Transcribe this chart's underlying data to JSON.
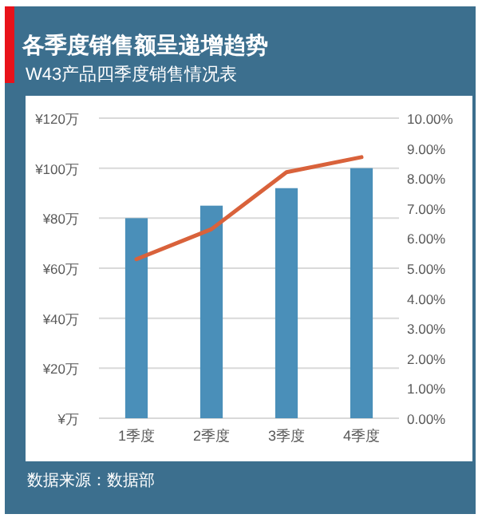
{
  "chart_data": {
    "type": "bar",
    "title": "各季度销售额呈递增趋势",
    "subtitle": "W43产品四季度销售情况表",
    "categories": [
      "1季度",
      "2季度",
      "3季度",
      "4季度"
    ],
    "series": [
      {
        "color": "#4a8fb9",
        "values": [
          80,
          85,
          92,
          100
        ]
      },
      {
        "type": "line",
        "axis": "y2",
        "color": "#d9623b",
        "values": [
          5.3,
          6.3,
          8.2,
          8.7
        ]
      }
    ],
    "ylim": [
      0,
      120
    ],
    "yticks": [
      {
        "value": 0,
        "label": "¥万"
      },
      {
        "value": 20,
        "label": "¥20万"
      },
      {
        "value": 40,
        "label": "¥40万"
      },
      {
        "value": 60,
        "label": "¥60万"
      },
      {
        "value": 80,
        "label": "¥80万"
      },
      {
        "value": 100,
        "label": "¥100万"
      },
      {
        "value": 120,
        "label": "¥120万"
      }
    ],
    "y2lim": [
      0,
      10
    ],
    "y2ticks": [
      {
        "value": 0,
        "label": "0.00%"
      },
      {
        "value": 1,
        "label": "1.00%"
      },
      {
        "value": 2,
        "label": "2.00%"
      },
      {
        "value": 3,
        "label": "3.00%"
      },
      {
        "value": 4,
        "label": "4.00%"
      },
      {
        "value": 5,
        "label": "5.00%"
      },
      {
        "value": 6,
        "label": "6.00%"
      },
      {
        "value": 7,
        "label": "7.00%"
      },
      {
        "value": 8,
        "label": "8.00%"
      },
      {
        "value": 9,
        "label": "9.00%"
      },
      {
        "value": 10,
        "label": "10.00%"
      }
    ],
    "grid": "y",
    "annotations": [
      "数据来源：数据部"
    ]
  }
}
